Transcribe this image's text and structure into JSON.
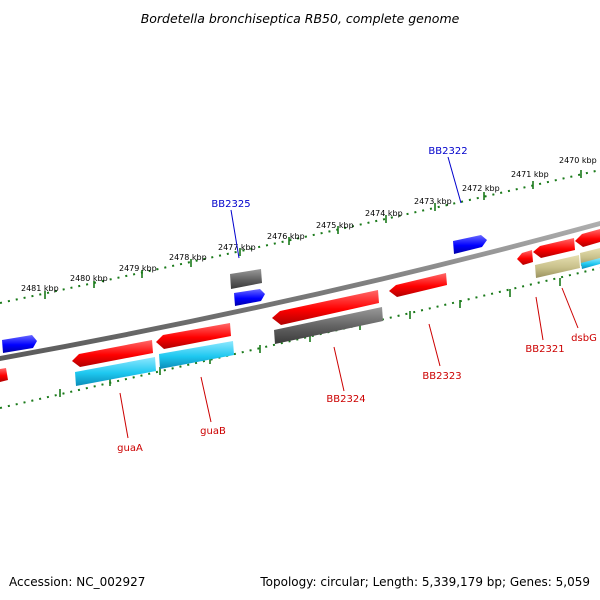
{
  "title": "Bordetella bronchiseptica RB50, complete genome",
  "footer": {
    "accession": "Accession: NC_002927",
    "topology": "Topology: circular; Length: 5,339,179 bp; Genes: 5,059"
  },
  "kbp_labels": [
    "2481 kbp",
    "2480 kbp",
    "2479 kbp",
    "2478 kbp",
    "2477 kbp",
    "2476 kbp",
    "2475 kbp",
    "2474 kbp",
    "2473 kbp",
    "2472 kbp",
    "2471 kbp",
    "2470 kbp"
  ],
  "gene_labels": {
    "BB2325": "BB2325",
    "BB2322": "BB2322",
    "guaA": "guaA",
    "guaB": "guaB",
    "BB2324": "BB2324",
    "BB2323": "BB2323",
    "BB2321": "BB2321",
    "dsbG": "dsbG"
  },
  "colors": {
    "backbone": "#808080",
    "ticks": "#1a7a1a",
    "gene_red": "#ff0000",
    "gene_cyan": "#1ec8f0",
    "gene_blue": "#0000ff",
    "gene_gray": "#606060",
    "gene_khaki": "#c8c08a",
    "label_blue": "#0000cc",
    "label_red": "#cc0000"
  }
}
